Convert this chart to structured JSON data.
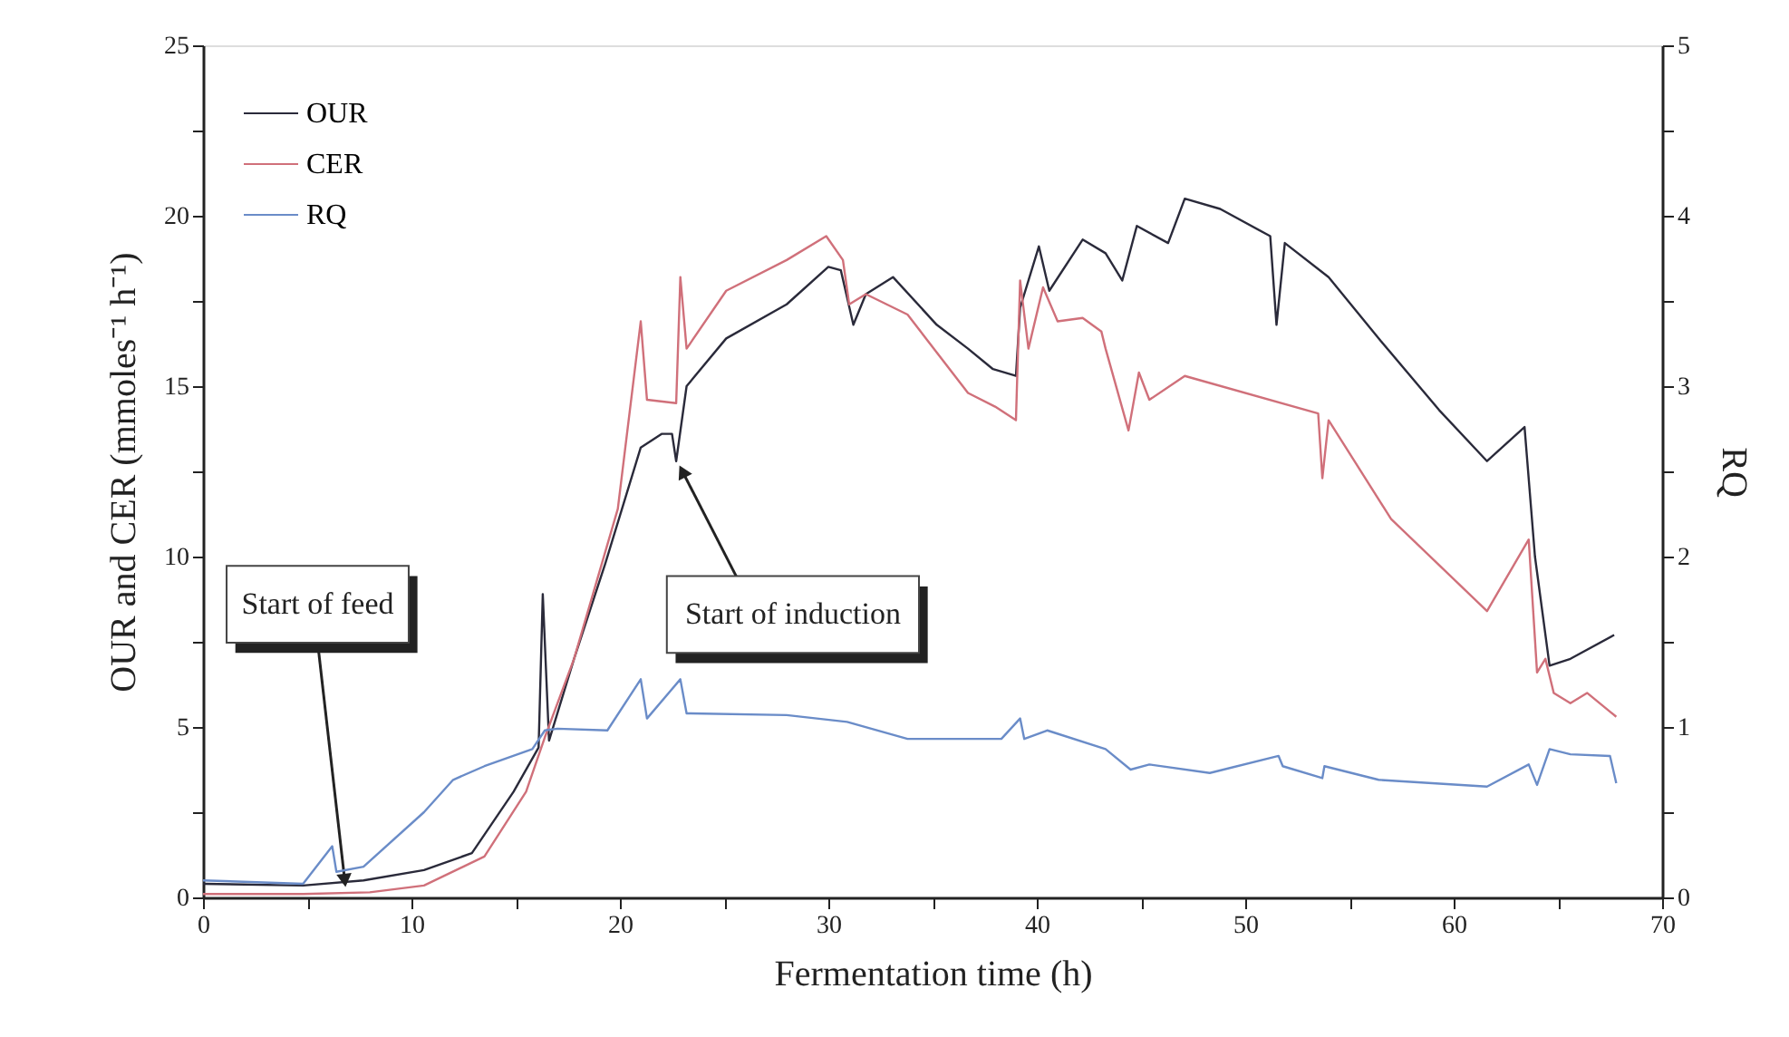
{
  "chart_data": {
    "type": "line",
    "xlabel": "Fermentation time (h)",
    "ylabel": "OUR and CER (mmoles⁻¹ h⁻¹)",
    "y2label": "RQ",
    "xlim": [
      0,
      70
    ],
    "xticks": [
      0,
      {
        "value": 5,
        "label": null
      },
      10,
      {
        "value": 15,
        "label": null
      },
      20,
      {
        "value": 25,
        "label": null
      },
      30,
      {
        "value": 35,
        "label": null
      },
      40,
      {
        "value": 45,
        "label": null
      },
      50,
      {
        "value": 55,
        "label": null
      },
      60,
      {
        "value": 65,
        "label": null
      },
      70
    ],
    "ylim": [
      0,
      25
    ],
    "yticks": [
      0,
      {
        "value": 2.5,
        "label": null
      },
      5,
      {
        "value": 7.5,
        "label": null
      },
      10,
      {
        "value": 12.5,
        "label": null
      },
      15,
      {
        "value": 17.5,
        "label": null
      },
      20,
      {
        "value": 22.5,
        "label": null
      },
      25
    ],
    "y2lim": [
      0,
      5
    ],
    "y2ticks": [
      0,
      {
        "value": 0.5,
        "label": null
      },
      1,
      {
        "value": 1.5,
        "label": null
      },
      2,
      {
        "value": 2.5,
        "label": null
      },
      3,
      {
        "value": 3.5,
        "label": null
      },
      4,
      {
        "value": 4.5,
        "label": null
      },
      5
    ],
    "grid": false,
    "legend": "top left",
    "line_style": "solid",
    "marker": "none",
    "annotations": [
      {
        "text": "Start of feed",
        "x": 6.8,
        "y": 0.5
      },
      {
        "text": "Start of induction",
        "x": 23,
        "y": 12.5
      }
    ],
    "series": [
      {
        "name": "OUR",
        "color": "#2a2a3a",
        "x": [
          0,
          4.8,
          7.7,
          10.6,
          12.9,
          14.9,
          16.1,
          16.3,
          16.6,
          17.8,
          19.3,
          21,
          22,
          22.5,
          22.7,
          23.2,
          25.1,
          28,
          30,
          30.6,
          31.2,
          31.8,
          33.1,
          35.2,
          36.7,
          37.9,
          39,
          39.2,
          40.1,
          40.6,
          42.2,
          43.3,
          44.1,
          44.8,
          46.3,
          47.1,
          48.8,
          51.2,
          51.5,
          51.9,
          54,
          56.4,
          59.3,
          61.6,
          63.4,
          63.9,
          64.6,
          65.6,
          67.7
        ],
        "values": [
          0.4,
          0.35,
          0.5,
          0.8,
          1.3,
          3.1,
          4.4,
          8.9,
          4.6,
          7,
          9.8,
          13.2,
          13.6,
          13.6,
          12.8,
          15,
          16.4,
          17.4,
          18.5,
          18.4,
          16.8,
          17.7,
          18.2,
          16.8,
          16.1,
          15.5,
          15.3,
          17.3,
          19.1,
          17.8,
          19.3,
          18.9,
          18.1,
          19.7,
          19.2,
          20.5,
          20.2,
          19.4,
          16.8,
          19.2,
          18.2,
          16.4,
          14.3,
          12.8,
          13.8,
          10,
          6.8,
          7.0,
          7.7
        ]
      },
      {
        "name": "CER",
        "color": "#d0707a",
        "x": [
          0,
          4.8,
          8,
          10.6,
          13.5,
          15.5,
          16.4,
          17.8,
          19.9,
          21,
          21.3,
          22.7,
          22.9,
          23.2,
          25.1,
          28,
          29.9,
          30.7,
          31,
          31.8,
          33.8,
          36.7,
          38,
          39,
          39.2,
          39.6,
          40.3,
          41,
          42.2,
          43.1,
          43.3,
          44.4,
          44.9,
          45.4,
          47.1,
          53.5,
          53.7,
          54,
          57,
          61.6,
          63.6,
          64,
          64.4,
          64.8,
          65.6,
          66.4,
          67.8
        ],
        "values": [
          0.1,
          0.1,
          0.15,
          0.35,
          1.2,
          3.1,
          4.7,
          7,
          11.4,
          16.9,
          14.6,
          14.5,
          18.2,
          16.1,
          17.8,
          18.7,
          19.4,
          18.7,
          17.4,
          17.7,
          17.1,
          14.8,
          14.4,
          14,
          18.1,
          16.1,
          17.9,
          16.9,
          17,
          16.6,
          16.1,
          13.7,
          15.4,
          14.6,
          15.3,
          14.2,
          12.3,
          14,
          11.1,
          8.4,
          10.5,
          6.6,
          7.0,
          6.0,
          5.7,
          6.0,
          5.3
        ]
      },
      {
        "name": "RQ",
        "color": "#6a8cc8",
        "axis": "y2",
        "x": [
          0,
          4.8,
          6.2,
          6.4,
          7.7,
          10.6,
          12,
          13.5,
          15.8,
          16.4,
          17,
          19.4,
          21,
          21.3,
          22.9,
          23.2,
          28,
          30.9,
          33.8,
          38.3,
          39.2,
          39.4,
          40.5,
          43.3,
          44.5,
          45.4,
          48.3,
          51.6,
          51.8,
          53.7,
          53.8,
          56.4,
          61.6,
          63.6,
          64,
          64.6,
          65.6,
          67.5,
          67.8
        ],
        "values": [
          0.1,
          0.08,
          0.3,
          0.15,
          0.18,
          0.5,
          0.69,
          0.77,
          0.87,
          0.98,
          0.99,
          0.98,
          1.28,
          1.05,
          1.28,
          1.08,
          1.07,
          1.03,
          0.93,
          0.93,
          1.05,
          0.93,
          0.98,
          0.87,
          0.75,
          0.78,
          0.73,
          0.83,
          0.77,
          0.7,
          0.77,
          0.69,
          0.65,
          0.78,
          0.66,
          0.87,
          0.84,
          0.83,
          0.67
        ]
      }
    ]
  }
}
